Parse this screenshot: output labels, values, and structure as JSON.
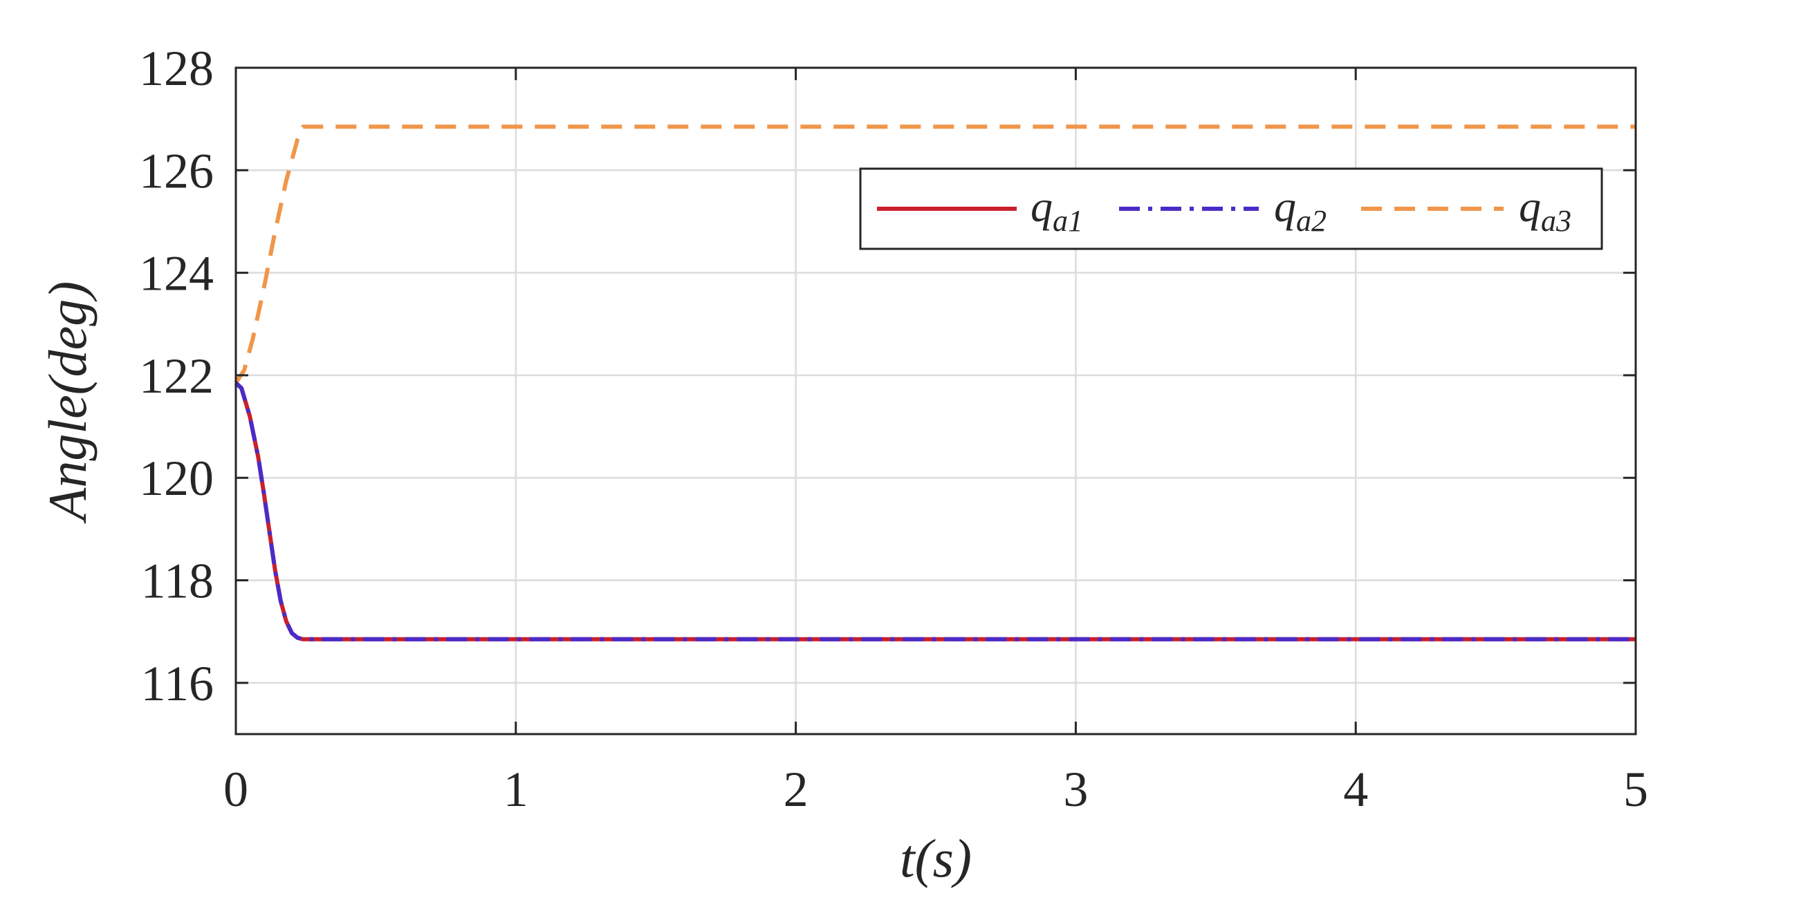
{
  "chart_data": {
    "type": "line",
    "xlabel": "t(s)",
    "ylabel": "Angle(deg)",
    "xlim": [
      0,
      5
    ],
    "ylim": [
      115,
      128
    ],
    "xticks": [
      0,
      1,
      2,
      3,
      4,
      5
    ],
    "yticks": [
      116,
      118,
      120,
      122,
      124,
      126,
      128
    ],
    "grid": true,
    "legend_position": "top-right",
    "series": [
      {
        "name": "q_a1",
        "display_name": "q",
        "display_sub": "a1",
        "color": "#C8202C",
        "style": "solid",
        "x": [
          0,
          0.02,
          0.05,
          0.08,
          0.1,
          0.12,
          0.14,
          0.16,
          0.18,
          0.2,
          0.22,
          0.24,
          0.25,
          0.5,
          1,
          2,
          3,
          4,
          5
        ],
        "y": [
          121.85,
          121.75,
          121.2,
          120.4,
          119.7,
          118.95,
          118.2,
          117.6,
          117.2,
          116.97,
          116.88,
          116.85,
          116.85,
          116.85,
          116.85,
          116.85,
          116.85,
          116.85,
          116.85
        ]
      },
      {
        "name": "q_a2",
        "display_name": "q",
        "display_sub": "a2",
        "color": "#4B2BC8",
        "style": "dashdot",
        "x": [
          0,
          0.02,
          0.05,
          0.08,
          0.1,
          0.12,
          0.14,
          0.16,
          0.18,
          0.2,
          0.22,
          0.24,
          0.25,
          0.5,
          1,
          2,
          3,
          4,
          5
        ],
        "y": [
          121.85,
          121.75,
          121.2,
          120.4,
          119.7,
          118.95,
          118.2,
          117.6,
          117.2,
          116.97,
          116.88,
          116.85,
          116.85,
          116.85,
          116.85,
          116.85,
          116.85,
          116.85,
          116.85
        ]
      },
      {
        "name": "q_a3",
        "display_name": "q",
        "display_sub": "a3",
        "color": "#F0964A",
        "style": "dashed",
        "x": [
          0,
          0.03,
          0.06,
          0.1,
          0.14,
          0.18,
          0.22,
          0.24,
          0.25,
          0.5,
          1,
          2,
          3,
          4,
          5
        ],
        "y": [
          121.85,
          122.1,
          122.7,
          123.7,
          124.8,
          125.8,
          126.6,
          126.85,
          126.85,
          126.85,
          126.85,
          126.85,
          126.85,
          126.85,
          126.85
        ]
      }
    ]
  }
}
